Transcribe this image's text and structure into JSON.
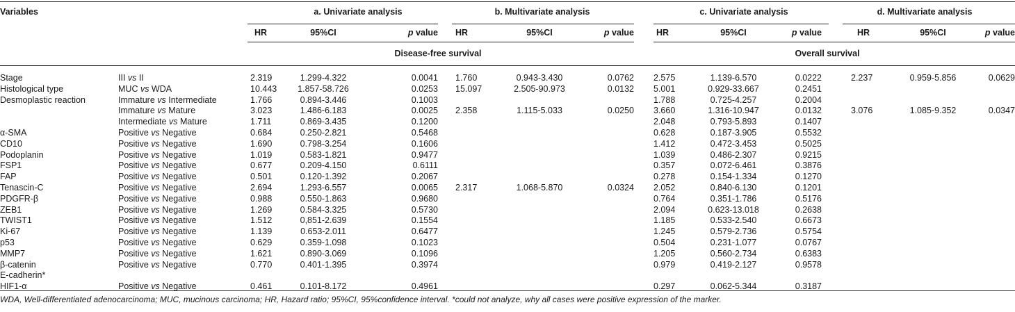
{
  "header": {
    "variables": "Variables",
    "groups": [
      "a. Univariate analysis",
      "b. Multivariate analysis",
      "c. Univariate analysis",
      "d. Multivariate analysis"
    ],
    "hr": "HR",
    "ci": "95%CI",
    "p_italic": "p",
    "p_rest": " value",
    "dfs": "Disease-free survival",
    "os": "Overall survival"
  },
  "rows": [
    {
      "var": "Stage",
      "comp": "III vs II",
      "a": [
        "2.319",
        "1.299-4.322",
        "0.0041"
      ],
      "b": [
        "1.760",
        "0.943-3.430",
        "0.0762"
      ],
      "c": [
        "2.575",
        "1.139-6.570",
        "0.0222"
      ],
      "d": [
        "2.237",
        "0.959-5.856",
        "0.0629"
      ]
    },
    {
      "var": "Histological type",
      "comp": "MUC vs WDA",
      "a": [
        "10.443",
        "1.857-58.726",
        "0.0253"
      ],
      "b": [
        "15.097",
        "2.505-90.973",
        "0.0132"
      ],
      "c": [
        "5.001",
        "0.929-33.667",
        "0.2451"
      ],
      "d": [
        "",
        "",
        ""
      ]
    },
    {
      "var": "Desmoplastic reaction",
      "comp": "Immature vs Intermediate",
      "a": [
        "1.766",
        "0.894-3.446",
        "0.1003"
      ],
      "b": [
        "",
        "",
        ""
      ],
      "c": [
        "1.788",
        "0.725-4.257",
        "0.2004"
      ],
      "d": [
        "",
        "",
        ""
      ]
    },
    {
      "var": "",
      "comp": "Immature vs Mature",
      "a": [
        "3.023",
        "1.486-6.183",
        "0.0025"
      ],
      "b": [
        "2.358",
        "1.115-5.033",
        "0.0250"
      ],
      "c": [
        "3.660",
        "1.316-10.947",
        "0.0132"
      ],
      "d": [
        "3.076",
        "1.085-9.352",
        "0.0347"
      ]
    },
    {
      "var": "",
      "comp": "Intermediate vs Mature",
      "a": [
        "1.711",
        "0.869-3.435",
        "0.1200"
      ],
      "b": [
        "",
        "",
        ""
      ],
      "c": [
        "2.048",
        "0.793-5.893",
        "0.1407"
      ],
      "d": [
        "",
        "",
        ""
      ]
    },
    {
      "var": "α-SMA",
      "comp": "Positive vs Negative",
      "a": [
        "0.684",
        "0.250-2.821",
        "0.5468"
      ],
      "b": [
        "",
        "",
        ""
      ],
      "c": [
        "0.628",
        "0.187-3.905",
        "0.5532"
      ],
      "d": [
        "",
        "",
        ""
      ]
    },
    {
      "var": "CD10",
      "comp": "Positive vs Negative",
      "a": [
        "1.690",
        "0.798-3.254",
        "0.1606"
      ],
      "b": [
        "",
        "",
        ""
      ],
      "c": [
        "1.412",
        "0.472-3.453",
        "0.5025"
      ],
      "d": [
        "",
        "",
        ""
      ]
    },
    {
      "var": "Podoplanin",
      "comp": "Positive vs Negative",
      "a": [
        "1.019",
        "0.583-1.821",
        "0.9477"
      ],
      "b": [
        "",
        "",
        ""
      ],
      "c": [
        "1.039",
        "0.486-2.307",
        "0.9215"
      ],
      "d": [
        "",
        "",
        ""
      ]
    },
    {
      "var": "FSP1",
      "comp": "Positive vs Negative",
      "a": [
        "0.677",
        "0.209-4.150",
        "0.6111"
      ],
      "b": [
        "",
        "",
        ""
      ],
      "c": [
        "0.357",
        "0.072-6.461",
        "0.3876"
      ],
      "d": [
        "",
        "",
        ""
      ]
    },
    {
      "var": "FAP",
      "comp": "Positive vs Negative",
      "a": [
        "0.501",
        "0.120-1.392",
        "0.2067"
      ],
      "b": [
        "",
        "",
        ""
      ],
      "c": [
        "0.278",
        "0.154-1.334",
        "0.1270"
      ],
      "d": [
        "",
        "",
        ""
      ]
    },
    {
      "var": "Tenascin-C",
      "comp": "Positive vs Negative",
      "a": [
        "2.694",
        "1.293-6.557",
        "0.0065"
      ],
      "b": [
        "2.317",
        "1.068-5.870",
        "0.0324"
      ],
      "c": [
        "2.052",
        "0.840-6.130",
        "0.1201"
      ],
      "d": [
        "",
        "",
        ""
      ]
    },
    {
      "var": "PDGFR-β",
      "comp": "Positive vs Negative",
      "a": [
        "0.988",
        "0.550-1.863",
        "0.9680"
      ],
      "b": [
        "",
        "",
        ""
      ],
      "c": [
        "0.764",
        "0.351-1.786",
        "0.5176"
      ],
      "d": [
        "",
        "",
        ""
      ]
    },
    {
      "var": "ZEB1",
      "comp": "Positive vs Negative",
      "a": [
        "1.269",
        "0.584-3.325",
        "0.5730"
      ],
      "b": [
        "",
        "",
        ""
      ],
      "c": [
        "2.094",
        "0.623-13.018",
        "0.2638"
      ],
      "d": [
        "",
        "",
        ""
      ]
    },
    {
      "var": "TWIST1",
      "comp": "Positive vs Negative",
      "a": [
        "1.512",
        "0,851-2.639",
        "0.1554"
      ],
      "b": [
        "",
        "",
        ""
      ],
      "c": [
        "1.185",
        "0.533-2.540",
        "0.6673"
      ],
      "d": [
        "",
        "",
        ""
      ]
    },
    {
      "var": "Ki-67",
      "comp": "Positive vs Negative",
      "a": [
        "1.139",
        "0.653-2.011",
        "0.6477"
      ],
      "b": [
        "",
        "",
        ""
      ],
      "c": [
        "1.245",
        "0.579-2.736",
        "0.5754"
      ],
      "d": [
        "",
        "",
        ""
      ]
    },
    {
      "var": "p53",
      "comp": "Positive vs Negative",
      "a": [
        "0.629",
        "0.359-1.098",
        "0.1023"
      ],
      "b": [
        "",
        "",
        ""
      ],
      "c": [
        "0.504",
        "0.231-1.077",
        "0.0767"
      ],
      "d": [
        "",
        "",
        ""
      ]
    },
    {
      "var": "MMP7",
      "comp": "Positive vs Negative",
      "a": [
        "1.621",
        "0.890-3.069",
        "0.1096"
      ],
      "b": [
        "",
        "",
        ""
      ],
      "c": [
        "1.205",
        "0.560-2.734",
        "0.6383"
      ],
      "d": [
        "",
        "",
        ""
      ]
    },
    {
      "var": "β-catenin",
      "comp": "Positive vs Negative",
      "a": [
        "0.770",
        "0.401-1.395",
        "0.3974"
      ],
      "b": [
        "",
        "",
        ""
      ],
      "c": [
        "0.979",
        "0.419-2.127",
        "0.9578"
      ],
      "d": [
        "",
        "",
        ""
      ]
    },
    {
      "var": "E-cadherin*",
      "comp": "",
      "a": [
        "",
        "",
        ""
      ],
      "b": [
        "",
        "",
        ""
      ],
      "c": [
        "",
        "",
        ""
      ],
      "d": [
        "",
        "",
        ""
      ]
    },
    {
      "var": "HIF1-α",
      "comp": "Positive vs Negative",
      "a": [
        "0.461",
        "0.101-8.172",
        "0.4961"
      ],
      "b": [
        "",
        "",
        ""
      ],
      "c": [
        "0.297",
        "0.062-5.344",
        "0.3187"
      ],
      "d": [
        "",
        "",
        ""
      ]
    }
  ],
  "footnote": "WDA, Well-differentiated adenocarcinoma; MUC, mucinous carcinoma; HR, Hazard ratio; 95%CI, 95%confidence interval. *could not analyze, why all cases were positive expression of the marker."
}
